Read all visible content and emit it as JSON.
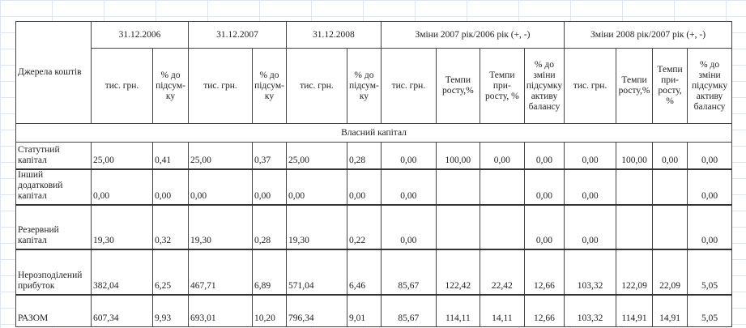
{
  "header": {
    "source_col": "Джерела коштів",
    "groups": [
      "31.12.2006",
      "31.12.2007",
      "31.12.2008",
      "Зміни 2007 рік/2006 рік (+, -)",
      "Зміни 2008 рік/2007 рік (+, -)"
    ],
    "sub": [
      "тис. грн.",
      "% до підсум-ку",
      "тис. грн.",
      "% до підсум-ку",
      "тис. грн.",
      "% до підсум-ку",
      "тис. грн.",
      "Темпи росту,%",
      "Темпи при-росту, %",
      "% до зміни підсумку активу балансу",
      "тис. грн.",
      "Темпи росту,%",
      "Темпи при-росту, %",
      "% до зміни підсумку активу балансу"
    ]
  },
  "section": "Власний капітал",
  "rows": [
    {
      "label": "Статутний капітал",
      "values": [
        "25,00",
        "0,41",
        "25,00",
        "0,37",
        "25,00",
        "0,28",
        "0,00",
        "100,00",
        "0,00",
        "0,00",
        "0,00",
        "100,00",
        "0,00",
        "0,00"
      ]
    },
    {
      "label": "Інший додатковий капітал",
      "values": [
        "0,00",
        "0,00",
        "0,00",
        "0,00",
        "0,00",
        "0,00",
        "0,00",
        "",
        "",
        "0,00",
        "0,00",
        "",
        "",
        "0,00"
      ]
    },
    {
      "label": "Резервний капітал",
      "values": [
        "19,30",
        "0,32",
        "19,30",
        "0,28",
        "19,30",
        "0,22",
        "0,00",
        "",
        "",
        "0,00",
        "0,00",
        "",
        "",
        "0,00"
      ]
    },
    {
      "label": "Нерозподілений прибуток",
      "values": [
        "382,04",
        "6,25",
        "467,71",
        "6,89",
        "571,04",
        "6,46",
        "85,67",
        "122,42",
        "22,42",
        "12,66",
        "103,32",
        "122,09",
        "22,09",
        "5,05"
      ]
    },
    {
      "label": "РАЗОМ",
      "values": [
        "607,34",
        "9,93",
        "693,01",
        "10,20",
        "796,34",
        "9,01",
        "85,67",
        "114,11",
        "14,11",
        "12,66",
        "103,32",
        "114,91",
        "14,91",
        "5,05"
      ]
    }
  ]
}
